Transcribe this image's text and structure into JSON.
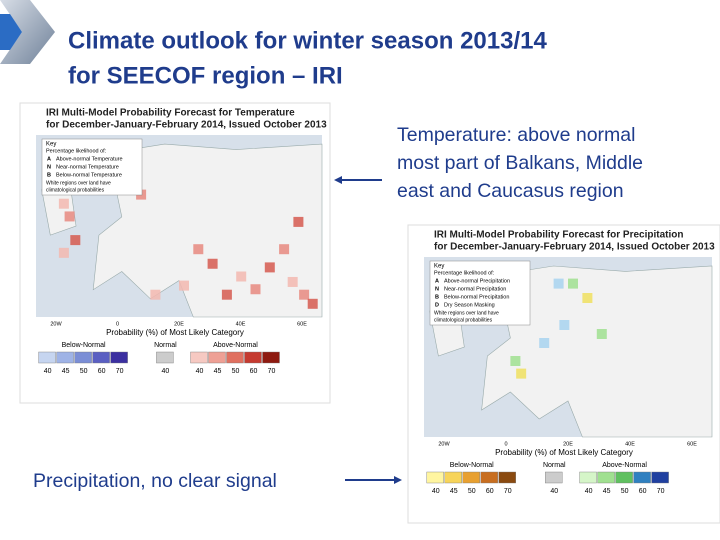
{
  "header": {
    "title_lines": [
      "Climate outlook for winter season 2013/14",
      "for SEECOF region – IRI"
    ]
  },
  "annotations": {
    "temperature": [
      "Temperature: above normal",
      "most part of Balkans, Middle",
      "east and Caucasus region"
    ],
    "precipitation": "Precipitation, no clear signal"
  },
  "maps": [
    {
      "title_lines": [
        "IRI Multi-Model Probability Forecast for Temperature",
        "for December-January-February 2014, Issued October 2013"
      ],
      "key_title": "Key",
      "key_subtitle": "Percentage likelihood of:",
      "key_letters": [
        "A",
        "N",
        "B"
      ],
      "key_items": [
        "Above-normal Temperature",
        "Near-normal Temperature",
        "Below-normal Temperature"
      ],
      "key_note": [
        "White regions over land have",
        "climatological probabilities"
      ],
      "lon_labels": [
        "20W",
        "0",
        "20E",
        "40E",
        "60E"
      ],
      "legend_title": "Probability (%) of Most Likely Category",
      "legend_groups": [
        "Below-Normal",
        "Normal",
        "Above-Normal"
      ],
      "legend_ticks": [
        [
          "40",
          "45",
          "50",
          "60",
          "70"
        ],
        [
          "40"
        ],
        [
          "40",
          "45",
          "50",
          "60",
          "70"
        ]
      ]
    },
    {
      "title_lines": [
        "IRI Multi-Model Probability Forecast for Precipitation",
        "for December-January-February 2014, Issued October 2013"
      ],
      "key_title": "Key",
      "key_subtitle": "Percentage likelihood of:",
      "key_letters": [
        "A",
        "N",
        "B",
        "D"
      ],
      "key_items": [
        "Above-normal Precipitation",
        "Near-normal Precipitation",
        "Below-normal Precipitation",
        "Dry Season Masking"
      ],
      "key_note": [
        "White regions over land have",
        "climatological probabilities"
      ],
      "lon_labels": [
        "20W",
        "0",
        "20E",
        "40E",
        "60E"
      ],
      "legend_title": "Probability (%) of Most Likely Category",
      "legend_groups": [
        "Below-Normal",
        "Normal",
        "Above-Normal"
      ],
      "legend_ticks": [
        [
          "40",
          "45",
          "50",
          "60",
          "70"
        ],
        [
          "40"
        ],
        [
          "40",
          "45",
          "50",
          "60",
          "70"
        ]
      ]
    }
  ]
}
